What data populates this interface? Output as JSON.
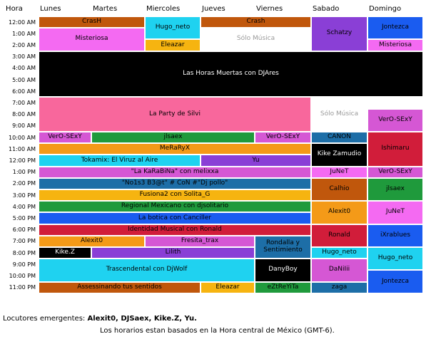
{
  "header": {
    "hora": "Hora",
    "days": [
      "Lunes",
      "Martes",
      "Miercoles",
      "Jueves",
      "Viernes",
      "Sabado",
      "Domingo"
    ]
  },
  "times": [
    "12:00 AM",
    "1:00 AM",
    "2:00 AM",
    "3:00 AM",
    "4:00 AM",
    "5:00 AM",
    "6:00 AM",
    "7:00 AM",
    "8:00 AM",
    "9:00 AM",
    "10:00 AM",
    "11:00 AM",
    "12:00 PM",
    "1:00 PM",
    "2:00 PM",
    "3:00 PM",
    "4:00 PM",
    "5:00 PM",
    "6:00 PM",
    "7:00 PM",
    "8:00 PM",
    "9:00 PM",
    "10:00 PM",
    "11:00 PM"
  ],
  "blocks": [
    {
      "label": "CrasH",
      "col": 0,
      "span": 2,
      "row": 0,
      "rows": 1,
      "bg": "#c0570c",
      "fg": "#000000"
    },
    {
      "label": "Hugo_neto",
      "col": 2,
      "span": 1,
      "row": 0,
      "rows": 2,
      "bg": "#1fd2f0",
      "fg": "#000000"
    },
    {
      "label": "Crash",
      "col": 3,
      "span": 2,
      "row": 0,
      "rows": 1,
      "bg": "#c0570c",
      "fg": "#000000"
    },
    {
      "label": "Schatzy",
      "col": 5,
      "span": 1,
      "row": 0,
      "rows": 3,
      "bg": "#8a3fd6",
      "fg": "#000000"
    },
    {
      "label": "Jontezca",
      "col": 6,
      "span": 1,
      "row": 0,
      "rows": 2,
      "bg": "#1a5cf0",
      "fg": "#000000"
    },
    {
      "label": "Misteriosa",
      "col": 0,
      "span": 2,
      "row": 1,
      "rows": 2,
      "bg": "#f46af2",
      "fg": "#000000"
    },
    {
      "label": "Sólo Música",
      "col": 3,
      "span": 2,
      "row": 1,
      "rows": 2,
      "bg": "#ffffff",
      "fg": "#9a9a9a"
    },
    {
      "label": "Eleazar",
      "col": 2,
      "span": 1,
      "row": 2,
      "rows": 1,
      "bg": "#f6b410",
      "fg": "#000000"
    },
    {
      "label": "Misteriosa",
      "col": 6,
      "span": 1,
      "row": 2,
      "rows": 1,
      "bg": "#f46af2",
      "fg": "#000000"
    },
    {
      "label": "Las Horas Muertas con DJAres",
      "col": 0,
      "span": 7,
      "row": 3,
      "rows": 4,
      "bg": "#000000",
      "fg": "#ffffff"
    },
    {
      "label": "La Party de Silvi",
      "col": 0,
      "span": 5,
      "row": 7,
      "rows": 3,
      "bg": "#f8679c",
      "fg": "#000000"
    },
    {
      "label": "Sólo Música",
      "col": 5,
      "span": 1,
      "row": 7,
      "rows": 3,
      "bg": "#ffffff",
      "fg": "#9a9a9a"
    },
    {
      "label": "VerO-SExY",
      "col": 6,
      "span": 1,
      "row": 8,
      "rows": 2,
      "bg": "#d557d4",
      "fg": "#000000"
    },
    {
      "label": "VerO-SExY",
      "col": 0,
      "span": 1,
      "row": 10,
      "rows": 1,
      "bg": "#d557d4",
      "fg": "#000000"
    },
    {
      "label": "jlsaex",
      "col": 1,
      "span": 3,
      "row": 10,
      "rows": 1,
      "bg": "#1f9a3c",
      "fg": "#000000"
    },
    {
      "label": "VerO-SExY",
      "col": 4,
      "span": 1,
      "row": 10,
      "rows": 1,
      "bg": "#d557d4",
      "fg": "#000000"
    },
    {
      "label": "CANON",
      "col": 5,
      "span": 1,
      "row": 10,
      "rows": 1,
      "bg": "#1d6ea7",
      "fg": "#000000"
    },
    {
      "label": "Ishimaru",
      "col": 6,
      "span": 1,
      "row": 10,
      "rows": 3,
      "bg": "#d11d3a",
      "fg": "#000000"
    },
    {
      "label": "MeRaRyX",
      "col": 0,
      "span": 5,
      "row": 11,
      "rows": 1,
      "bg": "#f49a18",
      "fg": "#000000"
    },
    {
      "label": "Kike Zamudio",
      "col": 5,
      "span": 1,
      "row": 11,
      "rows": 2,
      "bg": "#000000",
      "fg": "#ffffff"
    },
    {
      "label": "Tokamix: El Viruz al Aire",
      "col": 0,
      "span": 3,
      "row": 12,
      "rows": 1,
      "bg": "#1fd2f0",
      "fg": "#000000"
    },
    {
      "label": "Yu",
      "col": 3,
      "span": 2,
      "row": 12,
      "rows": 1,
      "bg": "#8a3fd6",
      "fg": "#000000"
    },
    {
      "label": "\"La KaRaBiNa\" con melixxa",
      "col": 0,
      "span": 5,
      "row": 13,
      "rows": 1,
      "bg": "#d557d4",
      "fg": "#000000"
    },
    {
      "label": "JuNeT",
      "col": 5,
      "span": 1,
      "row": 13,
      "rows": 1,
      "bg": "#f46af2",
      "fg": "#000000"
    },
    {
      "label": "VerO-SExY",
      "col": 6,
      "span": 1,
      "row": 13,
      "rows": 1,
      "bg": "#d557d4",
      "fg": "#000000"
    },
    {
      "label": "\"No1s3 B3@t\" # CoN #\"Dj pollo\"",
      "col": 0,
      "span": 5,
      "row": 14,
      "rows": 1,
      "bg": "#1d6ea7",
      "fg": "#000000"
    },
    {
      "label": "Calhio",
      "col": 5,
      "span": 1,
      "row": 14,
      "rows": 2,
      "bg": "#c0570c",
      "fg": "#000000"
    },
    {
      "label": "jlsaex",
      "col": 6,
      "span": 1,
      "row": 14,
      "rows": 2,
      "bg": "#1f9a3c",
      "fg": "#000000"
    },
    {
      "label": "Fusiona2 con Solita_G",
      "col": 0,
      "span": 5,
      "row": 15,
      "rows": 1,
      "bg": "#f6b410",
      "fg": "#000000"
    },
    {
      "label": "Regional Mexicano con djsolitario",
      "col": 0,
      "span": 5,
      "row": 16,
      "rows": 1,
      "bg": "#1f9a3c",
      "fg": "#000000"
    },
    {
      "label": "Alexit0",
      "col": 5,
      "span": 1,
      "row": 16,
      "rows": 2,
      "bg": "#f49a18",
      "fg": "#000000"
    },
    {
      "label": "JuNeT",
      "col": 6,
      "span": 1,
      "row": 16,
      "rows": 2,
      "bg": "#f46af2",
      "fg": "#000000"
    },
    {
      "label": "La botica con Canciller",
      "col": 0,
      "span": 5,
      "row": 17,
      "rows": 1,
      "bg": "#1a5cf0",
      "fg": "#000000"
    },
    {
      "label": "Identidad Musical con Ronald",
      "col": 0,
      "span": 5,
      "row": 18,
      "rows": 1,
      "bg": "#d11d3a",
      "fg": "#000000"
    },
    {
      "label": "Ronald",
      "col": 5,
      "span": 1,
      "row": 18,
      "rows": 2,
      "bg": "#d11d3a",
      "fg": "#000000"
    },
    {
      "label": "iXrablues",
      "col": 6,
      "span": 1,
      "row": 18,
      "rows": 2,
      "bg": "#1a5cf0",
      "fg": "#000000"
    },
    {
      "label": "Alexit0",
      "col": 0,
      "span": 2,
      "row": 19,
      "rows": 1,
      "bg": "#f49a18",
      "fg": "#000000"
    },
    {
      "label": "Fresita_trax",
      "col": 2,
      "span": 2,
      "row": 19,
      "rows": 1,
      "bg": "#d557d4",
      "fg": "#000000"
    },
    {
      "label": "Rondalla y Sentimiento",
      "col": 4,
      "span": 1,
      "row": 19,
      "rows": 2,
      "bg": "#1d6ea7",
      "fg": "#000000"
    },
    {
      "label": "Kike.Z",
      "col": 0,
      "span": 1,
      "row": 20,
      "rows": 1,
      "bg": "#000000",
      "fg": "#ffffff"
    },
    {
      "label": "Lilith",
      "col": 1,
      "span": 3,
      "row": 20,
      "rows": 1,
      "bg": "#8a3fd6",
      "fg": "#000000"
    },
    {
      "label": "Hugo_neto",
      "col": 5,
      "span": 1,
      "row": 20,
      "rows": 1,
      "bg": "#1fd2f0",
      "fg": "#000000"
    },
    {
      "label": "Hugo_neto",
      "col": 6,
      "span": 1,
      "row": 20,
      "rows": 2,
      "bg": "#1fd2f0",
      "fg": "#000000"
    },
    {
      "label": "Trascendental con DjWolf",
      "col": 0,
      "span": 4,
      "row": 21,
      "rows": 2,
      "bg": "#1fd2f0",
      "fg": "#000000"
    },
    {
      "label": "DanyBoy",
      "col": 4,
      "span": 1,
      "row": 21,
      "rows": 2,
      "bg": "#000000",
      "fg": "#ffffff"
    },
    {
      "label": "DaNiIii",
      "col": 5,
      "span": 1,
      "row": 21,
      "rows": 2,
      "bg": "#d557d4",
      "fg": "#000000"
    },
    {
      "label": "Jontezca",
      "col": 6,
      "span": 1,
      "row": 22,
      "rows": 2,
      "bg": "#1a5cf0",
      "fg": "#000000"
    },
    {
      "label": "Assessinando tus sentidos",
      "col": 0,
      "span": 3,
      "row": 23,
      "rows": 1,
      "bg": "#c0570c",
      "fg": "#000000"
    },
    {
      "label": "Eleazar",
      "col": 3,
      "span": 1,
      "row": 23,
      "rows": 1,
      "bg": "#f6b410",
      "fg": "#000000"
    },
    {
      "label": "eZtReYiTa",
      "col": 4,
      "span": 1,
      "row": 23,
      "rows": 1,
      "bg": "#1f9a3c",
      "fg": "#000000"
    },
    {
      "label": "zaga",
      "col": 5,
      "span": 1,
      "row": 23,
      "rows": 1,
      "bg": "#1d6ea7",
      "fg": "#000000"
    }
  ],
  "footer": {
    "emergentes_label": "Locutores emergentes: ",
    "emergentes_names": "Alexit0, DJSaex, Kike.Z, Yu.",
    "timezone_note": "Los horarios estan basados en la Hora central de México (GMT-6)."
  }
}
